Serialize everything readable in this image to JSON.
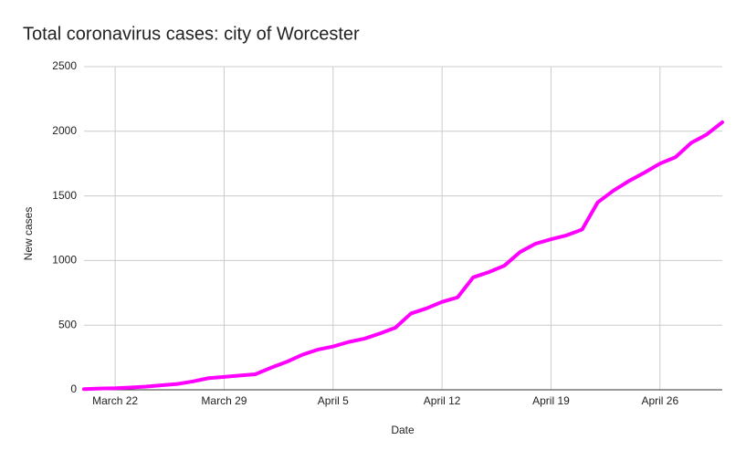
{
  "chart_data": {
    "type": "line",
    "title": "Total coronavirus cases: city of Worcester",
    "x_label": "Date",
    "y_label": "New cases",
    "categories": [
      null,
      null,
      "March 22",
      null,
      null,
      null,
      null,
      null,
      null,
      "March 29",
      null,
      null,
      null,
      null,
      null,
      null,
      "April 5",
      null,
      null,
      null,
      null,
      null,
      null,
      "April 12",
      null,
      null,
      null,
      null,
      null,
      null,
      "April 19",
      null,
      null,
      null,
      null,
      null,
      null,
      "April 26",
      null,
      null,
      null,
      null
    ],
    "series": [
      {
        "name": "New cases",
        "color": "#ff00ff",
        "values": [
          5,
          10,
          12,
          18,
          25,
          35,
          45,
          65,
          90,
          100,
          110,
          120,
          170,
          215,
          270,
          310,
          335,
          370,
          395,
          435,
          480,
          590,
          630,
          680,
          715,
          870,
          910,
          960,
          1065,
          1130,
          1165,
          1195,
          1240,
          1450,
          1540,
          1615,
          1680,
          1750,
          1800,
          1910,
          1975,
          2070
        ]
      }
    ],
    "ylim": [
      0,
      2500
    ],
    "yticks": [
      0,
      500,
      1000,
      1500,
      2000,
      2500
    ],
    "grid": true
  }
}
